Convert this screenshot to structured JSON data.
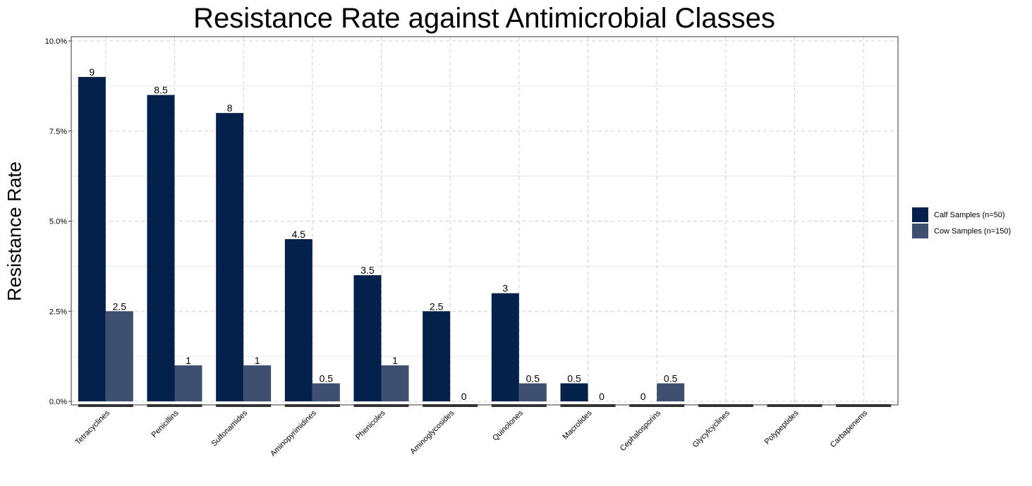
{
  "chart_data": {
    "type": "bar",
    "title": "Resistance Rate against Antimicrobial Classes",
    "ylabel": "Resistance Rate",
    "xlabel": "",
    "ylim": [
      0,
      10
    ],
    "yticks": [
      "0.0%",
      "2.5%",
      "5.0%",
      "7.5%",
      "10.0%"
    ],
    "ytick_values": [
      0,
      2.5,
      5,
      7.5,
      10
    ],
    "grid": true,
    "legend_position": "right",
    "categories": [
      "Tetracyclines",
      "Penicillins",
      "Sulfonamides",
      "Aminopyrimidines",
      "Phenicoles",
      "Aminoglycosides",
      "Quinolones",
      "Macrolides",
      "Cephalosporins",
      "Glycylcyclines",
      "Polypeptides",
      "Carbapenems"
    ],
    "series": [
      {
        "name": "Calf Samples (n=50)",
        "color": "#03214b",
        "values": [
          9,
          8.5,
          8,
          4.5,
          3.5,
          2.5,
          3,
          0.5,
          0,
          null,
          null,
          null
        ],
        "labels": [
          "9",
          "8.5",
          "8",
          "4.5",
          "3.5",
          "2.5",
          "3",
          "0.5",
          "0",
          null,
          null,
          null
        ]
      },
      {
        "name": "Cow Samples (n=150)",
        "color": "#3e4f70",
        "values": [
          2.5,
          1,
          1,
          0.5,
          1,
          0,
          0.5,
          0,
          0.5,
          null,
          null,
          null
        ],
        "labels": [
          "2.5",
          "1",
          "1",
          "0.5",
          "1",
          "0",
          "0.5",
          "0",
          "0.5",
          null,
          null,
          null
        ]
      }
    ]
  }
}
